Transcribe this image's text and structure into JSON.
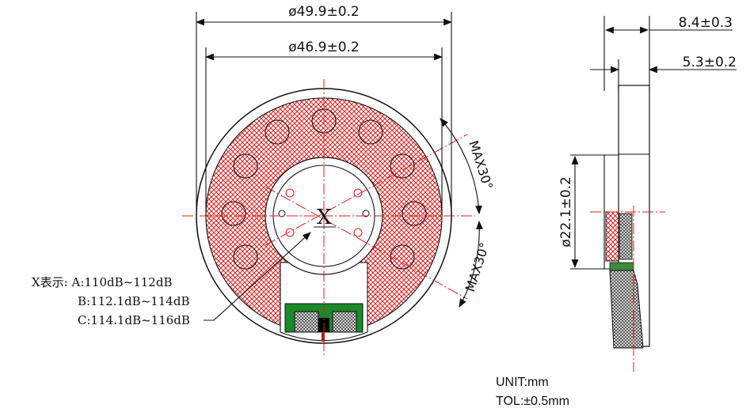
{
  "dims": {
    "outer_diameter": "ø49.9±0.2",
    "inner_diameter": "ø46.9±0.2",
    "total_height": "8.4±0.3",
    "frame_height": "5.3±0.2",
    "magnet_diameter": "ø22.1±0.2",
    "angle_top": "MAX30°",
    "angle_bottom": "MAX30°"
  },
  "marker": {
    "x_label": "X"
  },
  "legend": {
    "line_a": "X表示: A:110dB~112dB",
    "line_b": "B:112.1dB~114dB",
    "line_c": "C:114.1dB~116dB"
  },
  "notes": {
    "unit": "UNIT:mm",
    "tolerance": "TOL:±0.5mm"
  },
  "colors": {
    "hatch": "#e02020",
    "centerline": "#e21b1b",
    "pcb": "#1a8a2a"
  }
}
